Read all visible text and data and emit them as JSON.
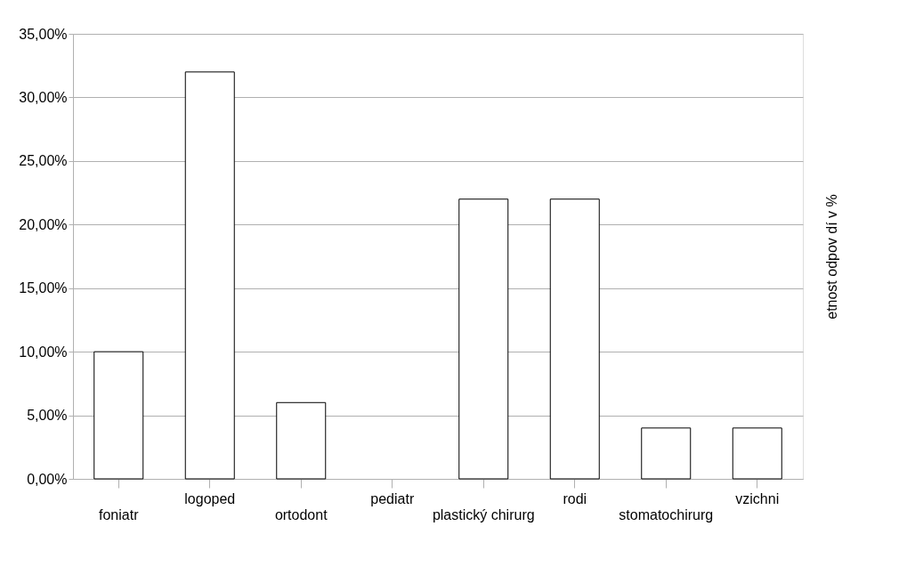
{
  "chart_data": {
    "type": "bar",
    "ylabel": "etnost odpov dí v %",
    "categories": [
      "foniatr",
      "logoped",
      "ortodont",
      "pediatr",
      "plastický chirurg",
      "rodi",
      "stomatochirurg",
      "vzichni"
    ],
    "values": [
      10,
      32,
      6,
      0,
      22,
      22,
      4,
      4
    ],
    "color": "#ffffff",
    "ylim": [
      0,
      35
    ],
    "yticks": [
      {
        "value": 0,
        "label": "0,00%"
      },
      {
        "value": 5,
        "label": "5,00%"
      },
      {
        "value": 10,
        "label": "10,00%"
      },
      {
        "value": 15,
        "label": "15,00%"
      },
      {
        "value": 20,
        "label": "20,00%"
      },
      {
        "value": 25,
        "label": "25,00%"
      },
      {
        "value": 30,
        "label": "30,00%"
      },
      {
        "value": 35,
        "label": "35,00%"
      }
    ],
    "grid": "y"
  }
}
